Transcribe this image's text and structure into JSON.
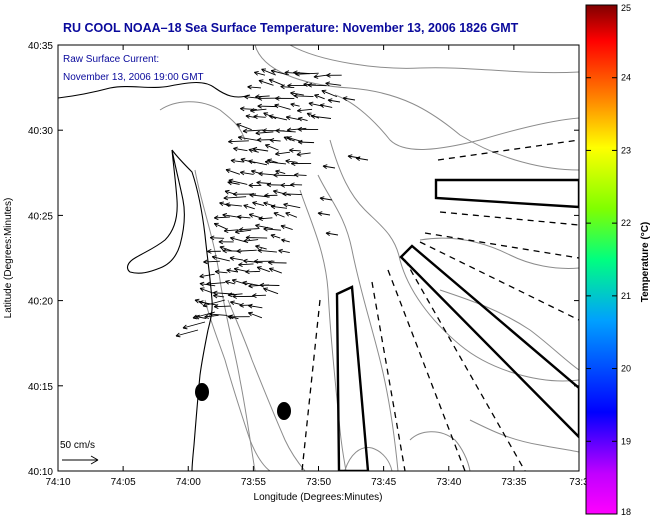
{
  "title": "RU COOL  NOAA–18  Sea Surface Temperature:  November 13, 2006 1826 GMT",
  "legend": {
    "line1": "Raw Surface Current:",
    "line2": "November 13, 2006 19:00 GMT"
  },
  "scale_label": "50 cm/s",
  "xlabel": "Longitude (Degrees:Minutes)",
  "ylabel": "Latitude (Degrees:Minutes)",
  "x_ticks": [
    "74:10",
    "74:05",
    "74:00",
    "73:55",
    "73:50",
    "73:45",
    "73:40",
    "73:35",
    "73:3"
  ],
  "y_ticks": [
    "40:35",
    "40:30",
    "40:25",
    "40:20",
    "40:15",
    "40:10"
  ],
  "colorbar": {
    "title": "Temperature (°C)",
    "ticks": [
      "25",
      "24",
      "23",
      "22",
      "21",
      "20",
      "19",
      "18"
    ],
    "range": [
      18,
      25
    ],
    "stops": [
      "#ff00ff",
      "#0000ff",
      "#00ffff",
      "#00ff00",
      "#ffff00",
      "#ff8000",
      "#ff0000",
      "#800000"
    ]
  }
}
